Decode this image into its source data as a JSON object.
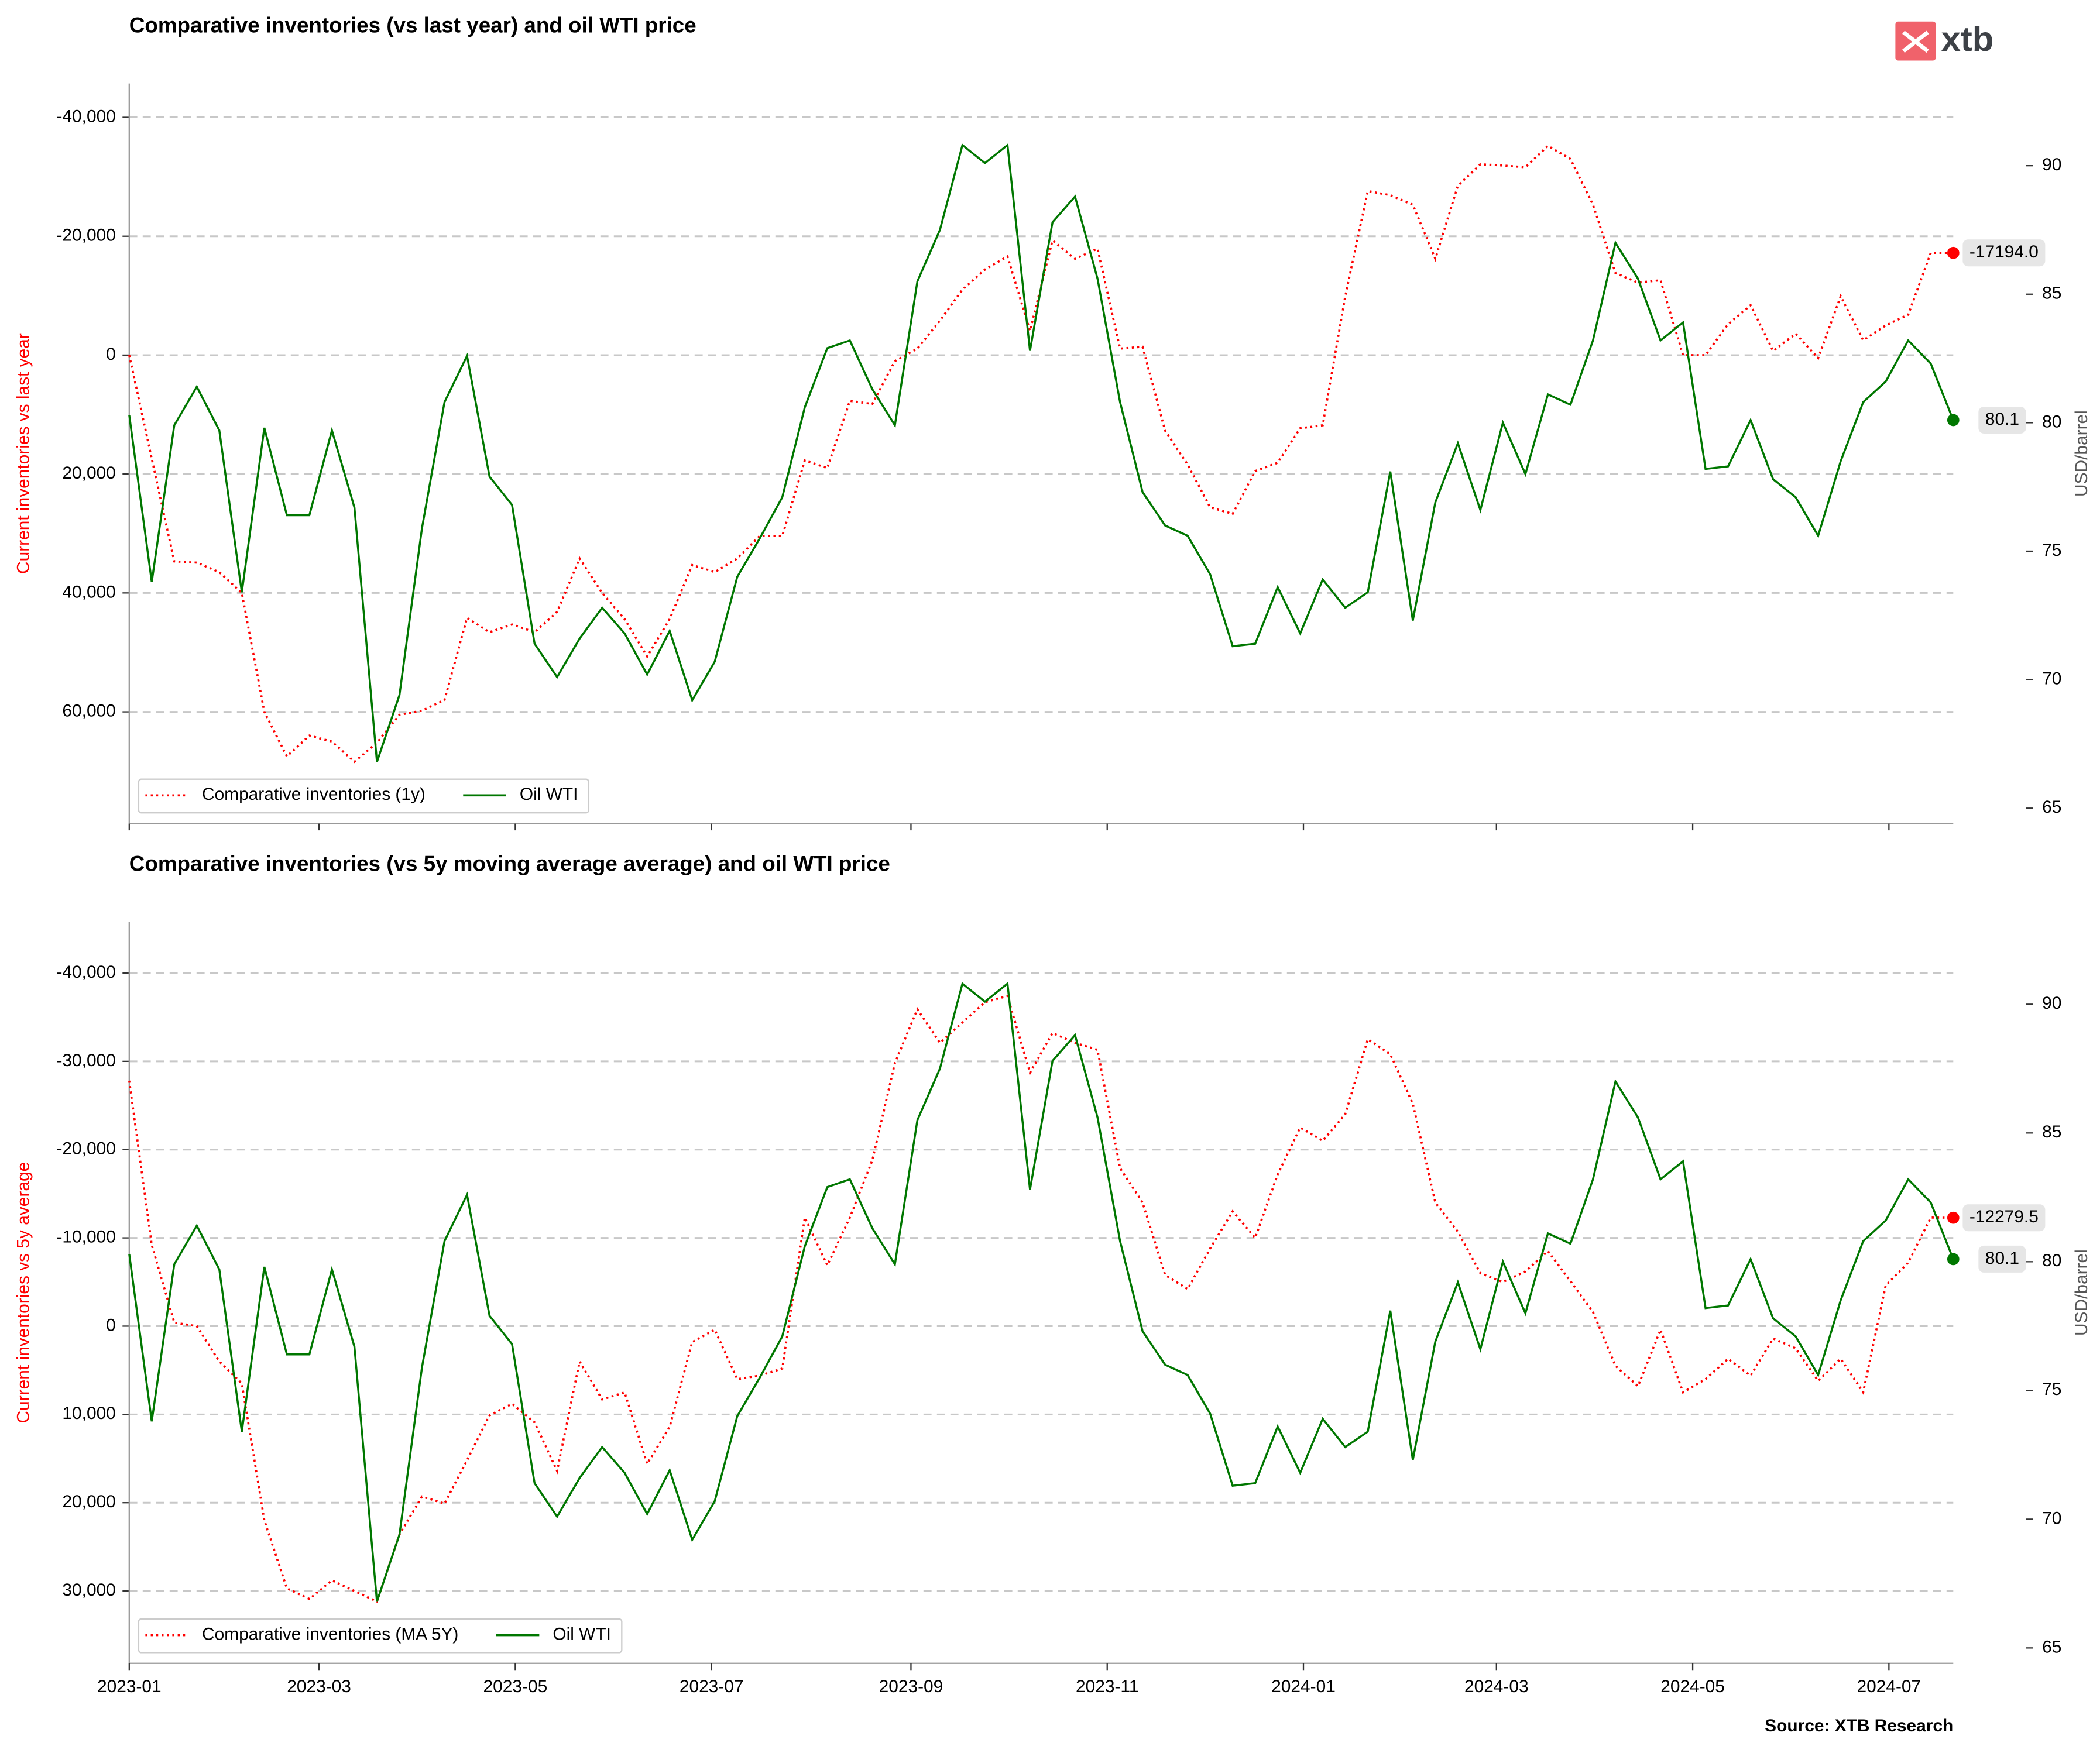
{
  "logo": "xtb",
  "source": "Source: XTB Research",
  "chart_data": [
    {
      "type": "line",
      "title": "Comparative inventories (vs last year) and oil WTI price",
      "ylabel": "Current inventories vs last year",
      "y2label": "USD/barrel",
      "y_inverted": true,
      "grid": true,
      "legend": "lower left",
      "x": [
        "2023-01-01",
        "2023-01-08",
        "2023-01-15",
        "2023-01-22",
        "2023-01-29",
        "2023-02-05",
        "2023-02-12",
        "2023-02-19",
        "2023-02-26",
        "2023-03-05",
        "2023-03-12",
        "2023-03-19",
        "2023-03-26",
        "2023-04-02",
        "2023-04-09",
        "2023-04-16",
        "2023-04-23",
        "2023-04-30",
        "2023-05-07",
        "2023-05-14",
        "2023-05-21",
        "2023-05-28",
        "2023-06-04",
        "2023-06-11",
        "2023-06-18",
        "2023-06-25",
        "2023-07-02",
        "2023-07-09",
        "2023-07-16",
        "2023-07-23",
        "2023-07-30",
        "2023-08-06",
        "2023-08-13",
        "2023-08-20",
        "2023-08-27",
        "2023-09-03",
        "2023-09-10",
        "2023-09-17",
        "2023-09-24",
        "2023-10-01",
        "2023-10-08",
        "2023-10-15",
        "2023-10-22",
        "2023-10-29",
        "2023-11-05",
        "2023-11-12",
        "2023-11-19",
        "2023-11-26",
        "2023-12-03",
        "2023-12-10",
        "2023-12-17",
        "2023-12-24",
        "2023-12-31",
        "2024-01-07",
        "2024-01-14",
        "2024-01-21",
        "2024-01-28",
        "2024-02-04",
        "2024-02-11",
        "2024-02-18",
        "2024-02-25",
        "2024-03-03",
        "2024-03-10",
        "2024-03-17",
        "2024-03-24",
        "2024-03-31",
        "2024-04-07",
        "2024-04-14",
        "2024-04-21",
        "2024-04-28",
        "2024-05-05",
        "2024-05-12",
        "2024-05-19",
        "2024-05-26",
        "2024-06-02",
        "2024-06-09",
        "2024-06-16",
        "2024-06-23",
        "2024-06-30",
        "2024-07-07",
        "2024-07-14",
        "2024-07-21"
      ],
      "xlim": [
        "2023-01-01",
        "2024-07-21"
      ],
      "xticks": [
        "2023-01",
        "2023-03",
        "2023-05",
        "2023-07",
        "2023-09",
        "2023-11",
        "2024-01",
        "2024-03",
        "2024-05",
        "2024-07"
      ],
      "ylim": [
        -45700,
        78800
      ],
      "yticks": [
        {
          "value": -40000,
          "label": "-40,000"
        },
        {
          "value": -20000,
          "label": "-20,000"
        },
        0,
        {
          "value": 20000,
          "label": "20,000"
        },
        {
          "value": 40000,
          "label": "40,000"
        },
        {
          "value": 60000,
          "label": "60,000"
        }
      ],
      "y2lim": [
        64.4,
        93.2
      ],
      "y2ticks": [
        65,
        70,
        75,
        80,
        85,
        90
      ],
      "series": [
        {
          "name": "Comparative inventories (1y)",
          "color": "#ff0000",
          "style": "dotted",
          "values": [
            0,
            17400,
            34700,
            34900,
            36500,
            40000,
            60000,
            67500,
            64000,
            65000,
            68400,
            65200,
            60500,
            59800,
            58000,
            44200,
            46600,
            45300,
            46600,
            43200,
            34200,
            40000,
            44400,
            50700,
            44400,
            35300,
            36500,
            34200,
            30400,
            30400,
            17700,
            19000,
            7700,
            8200,
            1000,
            -1100,
            -5800,
            -11000,
            -14400,
            -16600,
            -4100,
            -19300,
            -16200,
            -17900,
            -1100,
            -1400,
            12700,
            18400,
            25600,
            26700,
            19500,
            18100,
            12300,
            11800,
            -9900,
            -27600,
            -26900,
            -25300,
            -16200,
            -28500,
            -32100,
            -31900,
            -31600,
            -35200,
            -33000,
            -25300,
            -13800,
            -12200,
            -12600,
            0,
            0,
            -5200,
            -8400,
            -700,
            -3600,
            500,
            -9900,
            -2500,
            -5000,
            -6800,
            -17200,
            -17194
          ],
          "value_labels": [
            null,
            null,
            null,
            null,
            null,
            null,
            null,
            null,
            null,
            null,
            null,
            null,
            null,
            null,
            null,
            null,
            null,
            null,
            null,
            null,
            null,
            null,
            null,
            null,
            null,
            null,
            null,
            null,
            null,
            null,
            null,
            null,
            null,
            null,
            null,
            null,
            null,
            null,
            null,
            null,
            null,
            null,
            null,
            null,
            null,
            null,
            null,
            null,
            null,
            null,
            null,
            null,
            null,
            null,
            null,
            null,
            null,
            null,
            null,
            null,
            null,
            null,
            null,
            null,
            null,
            null,
            null,
            null,
            null,
            null,
            null,
            null,
            null,
            null,
            null,
            null,
            null,
            null,
            null,
            null,
            null,
            "-17194.0"
          ]
        },
        {
          "name": "Oil WTI",
          "color": "#007700",
          "style": "solid",
          "axis": "y2",
          "values": [
            80.3,
            73.8,
            79.9,
            81.4,
            79.7,
            73.4,
            79.8,
            76.4,
            76.4,
            79.7,
            76.7,
            66.8,
            69.4,
            75.9,
            80.8,
            82.6,
            77.9,
            76.8,
            71.4,
            70.1,
            71.6,
            72.8,
            71.8,
            70.2,
            71.9,
            69.2,
            70.7,
            74.0,
            75.5,
            77.1,
            80.6,
            82.9,
            83.2,
            81.3,
            79.9,
            85.5,
            87.5,
            90.8,
            90.1,
            90.8,
            82.8,
            87.8,
            88.8,
            85.6,
            80.8,
            77.3,
            76.0,
            75.6,
            74.1,
            71.3,
            71.4,
            73.6,
            71.8,
            73.9,
            72.8,
            73.4,
            78.1,
            72.3,
            76.9,
            79.2,
            76.6,
            80.0,
            78.0,
            81.1,
            80.7,
            83.2,
            87.0,
            85.6,
            83.2,
            83.9,
            78.2,
            78.3,
            80.1,
            77.8,
            77.1,
            75.6,
            78.5,
            80.8,
            81.6,
            83.2,
            82.3,
            80.1
          ],
          "value_labels": [
            null,
            null,
            null,
            null,
            null,
            null,
            null,
            null,
            null,
            null,
            null,
            null,
            null,
            null,
            null,
            null,
            null,
            null,
            null,
            null,
            null,
            null,
            null,
            null,
            null,
            null,
            null,
            null,
            null,
            null,
            null,
            null,
            null,
            null,
            null,
            null,
            null,
            null,
            null,
            null,
            null,
            null,
            null,
            null,
            null,
            null,
            null,
            null,
            null,
            null,
            null,
            null,
            null,
            null,
            null,
            null,
            null,
            null,
            null,
            null,
            null,
            null,
            null,
            null,
            null,
            null,
            null,
            null,
            null,
            null,
            null,
            null,
            null,
            null,
            null,
            null,
            null,
            null,
            null,
            null,
            null,
            "80.1"
          ]
        }
      ]
    },
    {
      "type": "line",
      "title": "Comparative inventories (vs 5y moving average average) and oil WTI price",
      "ylabel": "Current inventories vs 5y average",
      "y2label": "USD/barrel",
      "y_inverted": true,
      "grid": true,
      "legend": "lower left",
      "x": [
        "2023-01-01",
        "2023-01-08",
        "2023-01-15",
        "2023-01-22",
        "2023-01-29",
        "2023-02-05",
        "2023-02-12",
        "2023-02-19",
        "2023-02-26",
        "2023-03-05",
        "2023-03-12",
        "2023-03-19",
        "2023-03-26",
        "2023-04-02",
        "2023-04-09",
        "2023-04-16",
        "2023-04-23",
        "2023-04-30",
        "2023-05-07",
        "2023-05-14",
        "2023-05-21",
        "2023-05-28",
        "2023-06-04",
        "2023-06-11",
        "2023-06-18",
        "2023-06-25",
        "2023-07-02",
        "2023-07-09",
        "2023-07-16",
        "2023-07-23",
        "2023-07-30",
        "2023-08-06",
        "2023-08-13",
        "2023-08-20",
        "2023-08-27",
        "2023-09-03",
        "2023-09-10",
        "2023-09-17",
        "2023-09-24",
        "2023-10-01",
        "2023-10-08",
        "2023-10-15",
        "2023-10-22",
        "2023-10-29",
        "2023-11-05",
        "2023-11-12",
        "2023-11-19",
        "2023-11-26",
        "2023-12-03",
        "2023-12-10",
        "2023-12-17",
        "2023-12-24",
        "2023-12-31",
        "2024-01-07",
        "2024-01-14",
        "2024-01-21",
        "2024-01-28",
        "2024-02-04",
        "2024-02-11",
        "2024-02-18",
        "2024-02-25",
        "2024-03-03",
        "2024-03-10",
        "2024-03-17",
        "2024-03-24",
        "2024-03-31",
        "2024-04-07",
        "2024-04-14",
        "2024-04-21",
        "2024-04-28",
        "2024-05-05",
        "2024-05-12",
        "2024-05-19",
        "2024-05-26",
        "2024-06-02",
        "2024-06-09",
        "2024-06-16",
        "2024-06-23",
        "2024-06-30",
        "2024-07-07",
        "2024-07-14",
        "2024-07-21"
      ],
      "xlim": [
        "2023-01-01",
        "2024-07-21"
      ],
      "xticks": [
        "2023-01",
        "2023-03",
        "2023-05",
        "2023-07",
        "2023-09",
        "2023-11",
        "2024-01",
        "2024-03",
        "2024-05",
        "2024-07"
      ],
      "ylim": [
        -45800,
        38200
      ],
      "yticks": [
        {
          "value": -40000,
          "label": "-40,000"
        },
        {
          "value": -30000,
          "label": "-30,000"
        },
        {
          "value": -20000,
          "label": "-20,000"
        },
        {
          "value": -10000,
          "label": "-10,000"
        },
        0,
        {
          "value": 10000,
          "label": "10,000"
        },
        {
          "value": 20000,
          "label": "20,000"
        },
        {
          "value": 30000,
          "label": "30,000"
        }
      ],
      "y2lim": [
        64.4,
        93.2
      ],
      "y2ticks": [
        65,
        70,
        75,
        80,
        85,
        90
      ],
      "series": [
        {
          "name": "Comparative inventories (MA 5Y)",
          "color": "#ff0000",
          "style": "dotted",
          "values": [
            -27800,
            -9200,
            -400,
            0,
            4000,
            6500,
            22000,
            29700,
            30900,
            28800,
            30000,
            31200,
            23600,
            19300,
            20100,
            15200,
            10100,
            8800,
            10900,
            16400,
            4000,
            8300,
            7500,
            15600,
            11400,
            1800,
            400,
            6000,
            5600,
            4800,
            -12300,
            -6900,
            -12300,
            -18800,
            -29800,
            -35900,
            -32100,
            -34400,
            -36700,
            -37400,
            -28700,
            -33200,
            -32100,
            -31300,
            -17900,
            -14000,
            -5800,
            -4200,
            -8800,
            -13000,
            -10000,
            -17200,
            -22500,
            -21000,
            -24000,
            -32500,
            -30800,
            -25200,
            -14000,
            -10700,
            -6000,
            -5000,
            -6200,
            -8500,
            -5100,
            -1600,
            4500,
            6800,
            400,
            7500,
            6000,
            3700,
            5600,
            1400,
            2500,
            6200,
            3700,
            7500,
            -4600,
            -7200,
            -12300,
            -12279.5
          ],
          "value_labels": [
            null,
            null,
            null,
            null,
            null,
            null,
            null,
            null,
            null,
            null,
            null,
            null,
            null,
            null,
            null,
            null,
            null,
            null,
            null,
            null,
            null,
            null,
            null,
            null,
            null,
            null,
            null,
            null,
            null,
            null,
            null,
            null,
            null,
            null,
            null,
            null,
            null,
            null,
            null,
            null,
            null,
            null,
            null,
            null,
            null,
            null,
            null,
            null,
            null,
            null,
            null,
            null,
            null,
            null,
            null,
            null,
            null,
            null,
            null,
            null,
            null,
            null,
            null,
            null,
            null,
            null,
            null,
            null,
            null,
            null,
            null,
            null,
            null,
            null,
            null,
            null,
            null,
            null,
            null,
            null,
            null,
            "-12279.5"
          ]
        },
        {
          "name": "Oil WTI",
          "color": "#007700",
          "style": "solid",
          "axis": "y2",
          "values": [
            80.3,
            73.8,
            79.9,
            81.4,
            79.7,
            73.4,
            79.8,
            76.4,
            76.4,
            79.7,
            76.7,
            66.8,
            69.4,
            75.9,
            80.8,
            82.6,
            77.9,
            76.8,
            71.4,
            70.1,
            71.6,
            72.8,
            71.8,
            70.2,
            71.9,
            69.2,
            70.7,
            74.0,
            75.5,
            77.1,
            80.6,
            82.9,
            83.2,
            81.3,
            79.9,
            85.5,
            87.5,
            90.8,
            90.1,
            90.8,
            82.8,
            87.8,
            88.8,
            85.6,
            80.8,
            77.3,
            76.0,
            75.6,
            74.1,
            71.3,
            71.4,
            73.6,
            71.8,
            73.9,
            72.8,
            73.4,
            78.1,
            72.3,
            76.9,
            79.2,
            76.6,
            80.0,
            78.0,
            81.1,
            80.7,
            83.2,
            87.0,
            85.6,
            83.2,
            83.9,
            78.2,
            78.3,
            80.1,
            77.8,
            77.1,
            75.6,
            78.5,
            80.8,
            81.6,
            83.2,
            82.3,
            80.1
          ],
          "value_labels": [
            null,
            null,
            null,
            null,
            null,
            null,
            null,
            null,
            null,
            null,
            null,
            null,
            null,
            null,
            null,
            null,
            null,
            null,
            null,
            null,
            null,
            null,
            null,
            null,
            null,
            null,
            null,
            null,
            null,
            null,
            null,
            null,
            null,
            null,
            null,
            null,
            null,
            null,
            null,
            null,
            null,
            null,
            null,
            null,
            null,
            null,
            null,
            null,
            null,
            null,
            null,
            null,
            null,
            null,
            null,
            null,
            null,
            null,
            null,
            null,
            null,
            null,
            null,
            null,
            null,
            null,
            null,
            null,
            null,
            null,
            null,
            null,
            null,
            null,
            null,
            null,
            null,
            null,
            null,
            null,
            null,
            "80.1"
          ]
        }
      ]
    }
  ]
}
